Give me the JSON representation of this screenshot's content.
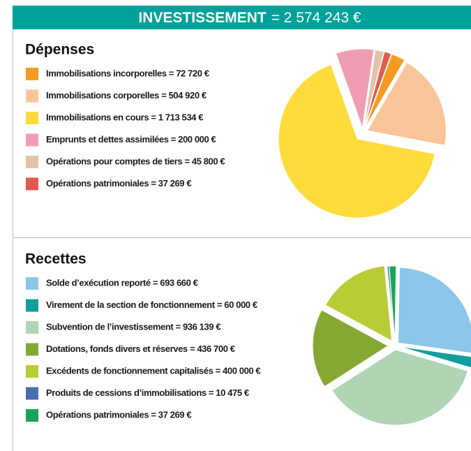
{
  "header": {
    "title": "INVESTISSEMENT",
    "total": "= 2 574 243 €"
  },
  "chart_data": [
    {
      "type": "pie",
      "title": "Dépenses",
      "categories": [
        "Immobilisations incorporelles = 72 720 €",
        "Immobilisations corporelles = 504 920 €",
        "Immobilisations en cours = 1 713 534 €",
        "Emprunts et dettes assimilées = 200 000 €",
        "Opérations pour comptes de tiers = 45 800 €",
        "Opérations patrimoniales = 37 269 €"
      ],
      "values": [
        72720,
        504920,
        1713534,
        200000,
        45800,
        37269
      ],
      "colors": [
        "#f39c1f",
        "#f9c49a",
        "#fddb3a",
        "#f09db4",
        "#e2c3a9",
        "#e05a4e"
      ]
    },
    {
      "type": "pie",
      "title": "Recettes",
      "categories": [
        "Solde d’exécution reporté = 693 660 €",
        "Virement de la section de fonctionnement = 60 000 €",
        "Subvention de l’investissement = 936 139 €",
        "Dotations, fonds divers et réserves = 436 700 €",
        "Excédents de fonctionnement capitalisés = 400 000 €",
        "Produits de cessions d’immobilisations = 10 475 €",
        "Opérations patrimoniales = 37 269 €"
      ],
      "values": [
        693660,
        60000,
        936139,
        436700,
        400000,
        10475,
        37269
      ],
      "colors": [
        "#8cc6e8",
        "#149d9d",
        "#b0d4b4",
        "#84a831",
        "#b9cc36",
        "#4a6fb0",
        "#19a454"
      ]
    }
  ]
}
